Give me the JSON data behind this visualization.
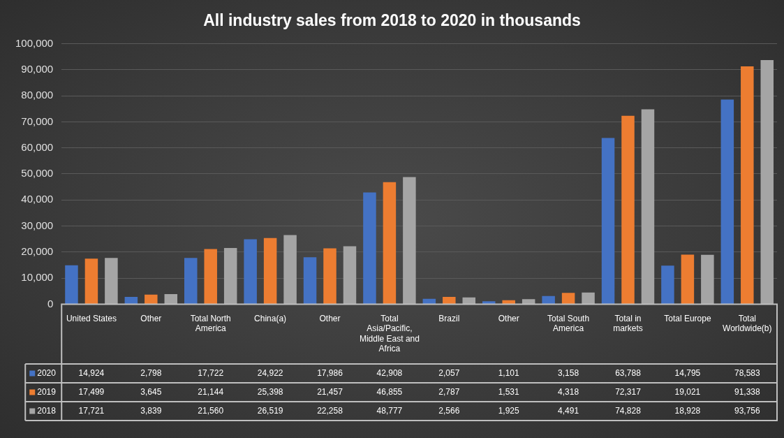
{
  "chart_data": {
    "type": "bar",
    "title": "All industry sales from 2018 to 2020 in thousands",
    "categories": [
      "United States",
      "Other",
      "Total North America",
      "China(a)",
      "Other",
      "Total Asia/Pacific, Middle East and Africa",
      "Brazil",
      "Other",
      "Total South America",
      "Total in markets",
      "Total Europe",
      "Total Worldwide(b)"
    ],
    "series": [
      {
        "name": "2020",
        "color": "#4472c4",
        "values": [
          14924,
          2798,
          17722,
          24922,
          17986,
          42908,
          2057,
          1101,
          3158,
          63788,
          14795,
          78583
        ],
        "value_labels": [
          "14,924",
          "2,798",
          "17,722",
          "24,922",
          "17,986",
          "42,908",
          "2,057",
          "1,101",
          "3,158",
          "63,788",
          "14,795",
          "78,583"
        ]
      },
      {
        "name": "2019",
        "color": "#ed7d31",
        "values": [
          17499,
          3645,
          21144,
          25398,
          21457,
          46855,
          2787,
          1531,
          4318,
          72317,
          19021,
          91338
        ],
        "value_labels": [
          "17,499",
          "3,645",
          "21,144",
          "25,398",
          "21,457",
          "46,855",
          "2,787",
          "1,531",
          "4,318",
          "72,317",
          "19,021",
          "91,338"
        ]
      },
      {
        "name": "2018",
        "color": "#a5a5a5",
        "values": [
          17721,
          3839,
          21560,
          26519,
          22258,
          48777,
          2566,
          1925,
          4491,
          74828,
          18928,
          93756
        ],
        "value_labels": [
          "17,721",
          "3,839",
          "21,560",
          "26,519",
          "22,258",
          "48,777",
          "2,566",
          "1,925",
          "4,491",
          "74,828",
          "18,928",
          "93,756"
        ]
      }
    ],
    "ylim": [
      0,
      100000
    ],
    "yticks": [
      0,
      {
        "value": 10000,
        "label": "10,000"
      },
      {
        "value": 20000,
        "label": "20,000"
      },
      {
        "value": 30000,
        "label": "30,000"
      },
      {
        "value": 40000,
        "label": "40,000"
      },
      {
        "value": 50000,
        "label": "50,000"
      },
      {
        "value": 60000,
        "label": "60,000"
      },
      {
        "value": 70000,
        "label": "70,000"
      },
      {
        "value": 80000,
        "label": "80,000"
      },
      {
        "value": 90000,
        "label": "90,000"
      },
      {
        "value": 100000,
        "label": "100,000"
      }
    ],
    "grid": "y",
    "legend": "bottom"
  }
}
